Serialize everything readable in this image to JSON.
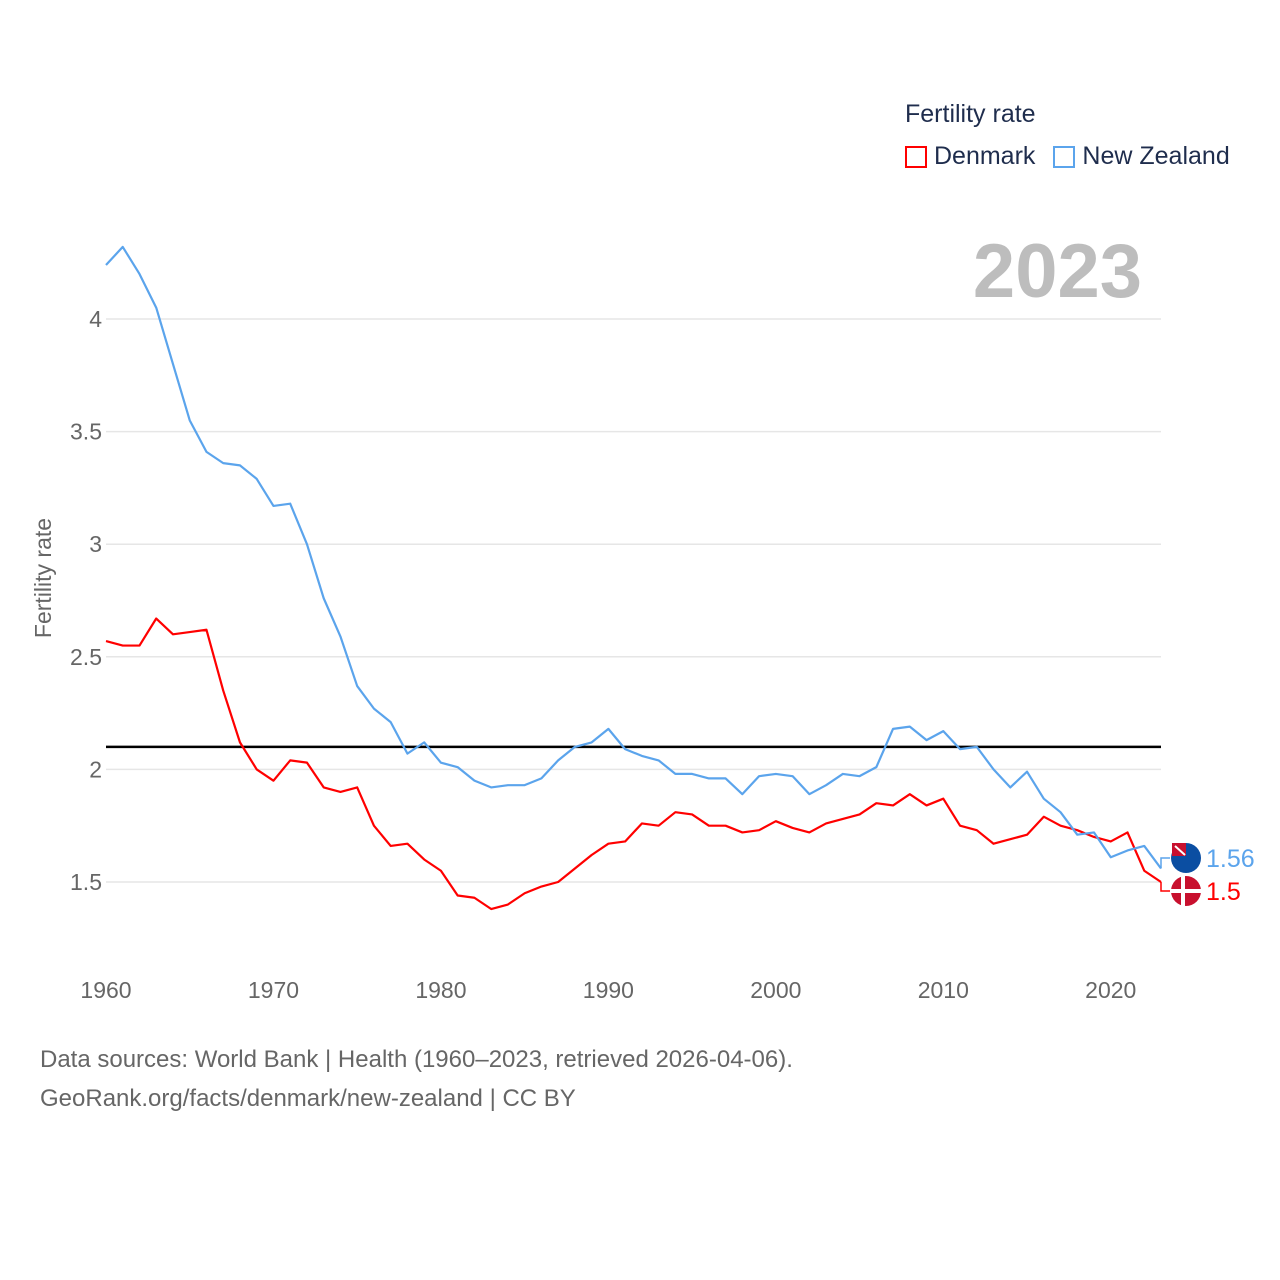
{
  "legend": {
    "title": "Fertility rate",
    "items": [
      {
        "name": "Denmark",
        "color": "#ff0000"
      },
      {
        "name": "New Zealand",
        "color": "#5ba4ec"
      }
    ]
  },
  "year_label": "2023",
  "footer": {
    "line1": "Data sources: World Bank | Health (1960–2023, retrieved 2026-04-06).",
    "line2": "GeoRank.org/facts/denmark/new-zealand | CC BY"
  },
  "chart_data": {
    "type": "line",
    "title": "Fertility rate",
    "xlabel": "",
    "ylabel": "Fertility rate",
    "xlim": [
      1960,
      2023
    ],
    "ylim": [
      1.25,
      4.35
    ],
    "xticks": [
      "1960",
      "1970",
      "1980",
      "1990",
      "2000",
      "2010",
      "2020"
    ],
    "yticks": [
      "1.5",
      "2",
      "2.5",
      "3",
      "3.5",
      "4"
    ],
    "grid": true,
    "legend_position": "top-right",
    "reference_line": {
      "y": 2.1,
      "color": "#000000"
    },
    "x": [
      1960,
      1961,
      1962,
      1963,
      1964,
      1965,
      1966,
      1967,
      1968,
      1969,
      1970,
      1971,
      1972,
      1973,
      1974,
      1975,
      1976,
      1977,
      1978,
      1979,
      1980,
      1981,
      1982,
      1983,
      1984,
      1985,
      1986,
      1987,
      1988,
      1989,
      1990,
      1991,
      1992,
      1993,
      1994,
      1995,
      1996,
      1997,
      1998,
      1999,
      2000,
      2001,
      2002,
      2003,
      2004,
      2005,
      2006,
      2007,
      2008,
      2009,
      2010,
      2011,
      2012,
      2013,
      2014,
      2015,
      2016,
      2017,
      2018,
      2019,
      2020,
      2021,
      2022,
      2023
    ],
    "series": [
      {
        "name": "Denmark",
        "color": "#ff0000",
        "end_label": "1.5",
        "values": [
          2.57,
          2.55,
          2.55,
          2.67,
          2.6,
          2.61,
          2.62,
          2.35,
          2.12,
          2.0,
          1.95,
          2.04,
          2.03,
          1.92,
          1.9,
          1.92,
          1.75,
          1.66,
          1.67,
          1.6,
          1.55,
          1.44,
          1.43,
          1.38,
          1.4,
          1.45,
          1.48,
          1.5,
          1.56,
          1.62,
          1.67,
          1.68,
          1.76,
          1.75,
          1.81,
          1.8,
          1.75,
          1.75,
          1.72,
          1.73,
          1.77,
          1.74,
          1.72,
          1.76,
          1.78,
          1.8,
          1.85,
          1.84,
          1.89,
          1.84,
          1.87,
          1.75,
          1.73,
          1.67,
          1.69,
          1.71,
          1.79,
          1.75,
          1.73,
          1.7,
          1.68,
          1.72,
          1.55,
          1.5
        ]
      },
      {
        "name": "New Zealand",
        "color": "#5ba4ec",
        "end_label": "1.56",
        "values": [
          4.24,
          4.32,
          4.2,
          4.05,
          3.8,
          3.55,
          3.41,
          3.36,
          3.35,
          3.29,
          3.17,
          3.18,
          3.0,
          2.76,
          2.59,
          2.37,
          2.27,
          2.21,
          2.07,
          2.12,
          2.03,
          2.01,
          1.95,
          1.92,
          1.93,
          1.93,
          1.96,
          2.04,
          2.1,
          2.12,
          2.18,
          2.09,
          2.06,
          2.04,
          1.98,
          1.98,
          1.96,
          1.96,
          1.89,
          1.97,
          1.98,
          1.97,
          1.89,
          1.93,
          1.98,
          1.97,
          2.01,
          2.18,
          2.19,
          2.13,
          2.17,
          2.09,
          2.1,
          2.0,
          1.92,
          1.99,
          1.87,
          1.81,
          1.71,
          1.72,
          1.61,
          1.64,
          1.66,
          1.56
        ]
      }
    ]
  }
}
